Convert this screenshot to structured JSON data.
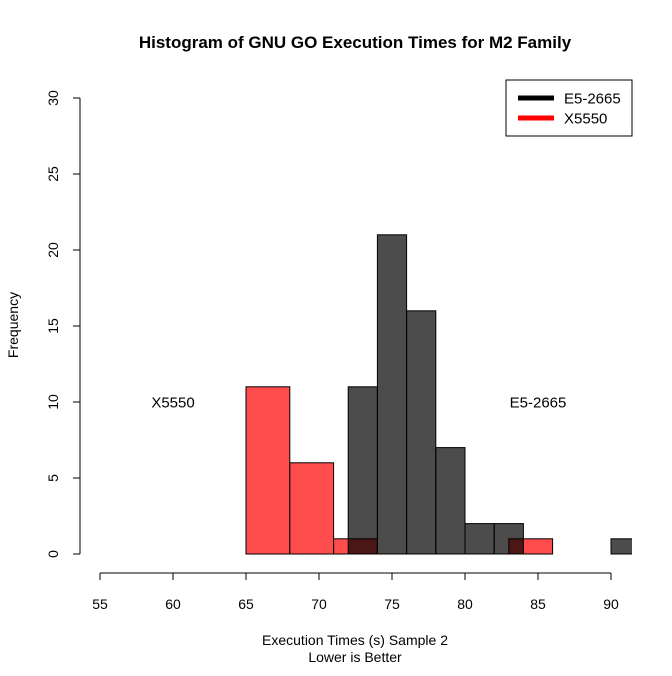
{
  "chart_data": {
    "type": "bar",
    "title": "Histogram of GNU GO Execution Times for M2 Family",
    "xlabel": "Execution Times (s) Sample 2",
    "xlabel2": "Lower is Better",
    "ylabel": "Frequency",
    "xlim": [
      55,
      91
    ],
    "ylim": [
      0,
      30
    ],
    "x_ticks": [
      55,
      60,
      65,
      70,
      75,
      80,
      85,
      90
    ],
    "y_ticks": [
      0,
      5,
      10,
      15,
      20,
      25,
      30
    ],
    "legend_position": "top-right",
    "series": [
      {
        "name": "X5550",
        "color": "#ff0000",
        "bins": [
          {
            "x0": 65,
            "x1": 68,
            "count": 11
          },
          {
            "x0": 68,
            "x1": 71,
            "count": 6
          },
          {
            "x0": 71,
            "x1": 74,
            "count": 1
          },
          {
            "x0": 83,
            "x1": 86,
            "count": 1
          }
        ]
      },
      {
        "name": "E5-2665",
        "color": "#000000",
        "bins": [
          {
            "x0": 72,
            "x1": 74,
            "count": 11
          },
          {
            "x0": 74,
            "x1": 76,
            "count": 21
          },
          {
            "x0": 76,
            "x1": 78,
            "count": 16
          },
          {
            "x0": 78,
            "x1": 80,
            "count": 7
          },
          {
            "x0": 80,
            "x1": 82,
            "count": 2
          },
          {
            "x0": 82,
            "x1": 84,
            "count": 2
          },
          {
            "x0": 84,
            "x1": 86,
            "count": 0
          },
          {
            "x0": 86,
            "x1": 88,
            "count": 0
          },
          {
            "x0": 88,
            "x1": 90,
            "count": 0
          },
          {
            "x0": 90,
            "x1": 92,
            "count": 1
          }
        ]
      }
    ],
    "annotations": [
      {
        "text": "X5550",
        "x": 60,
        "y": 10
      },
      {
        "text": "E5-2665",
        "x": 85,
        "y": 10
      }
    ]
  }
}
